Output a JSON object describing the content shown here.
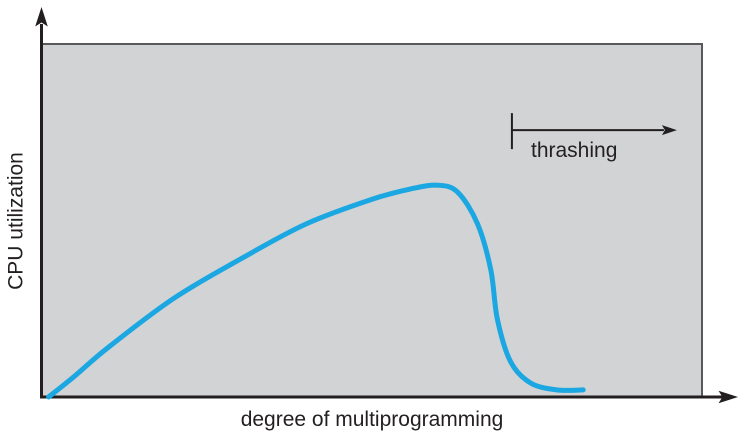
{
  "figure": {
    "y_axis_label": "CPU utilization",
    "x_axis_label": "degree of multiprogramming",
    "annotation_label": "thrashing"
  },
  "colors": {
    "curve": "#1ba7e1",
    "plot_background": "#d2d3d4",
    "plot_border": "#59595b",
    "axis_and_text": "#231f20",
    "page_background": "#ffffff"
  },
  "chart_data": {
    "type": "line",
    "title": "",
    "xlabel": "degree of multiprogramming",
    "ylabel": "CPU utilization",
    "x_range_pct": [
      0,
      100
    ],
    "y_range_pct": [
      0,
      100
    ],
    "ticks": "none",
    "grid": false,
    "legend": false,
    "series": [
      {
        "name": "CPU utilization",
        "color": "#1ba7e1",
        "points_pct": [
          [
            1,
            0
          ],
          [
            5,
            6
          ],
          [
            10,
            14
          ],
          [
            20,
            28
          ],
          [
            30,
            39
          ],
          [
            40,
            49
          ],
          [
            50,
            56
          ],
          [
            56,
            59
          ],
          [
            60,
            60
          ],
          [
            63,
            58
          ],
          [
            66,
            49
          ],
          [
            68,
            36
          ],
          [
            69,
            22
          ],
          [
            71,
            10
          ],
          [
            74,
            4
          ],
          [
            78,
            2
          ],
          [
            82,
            2
          ]
        ]
      }
    ],
    "annotations": [
      {
        "label": "thrashing",
        "type": "range-arrow-right",
        "x_start_pct": 71.2,
        "x_end_pct": 96.2,
        "y_pct": 75.6
      }
    ]
  }
}
